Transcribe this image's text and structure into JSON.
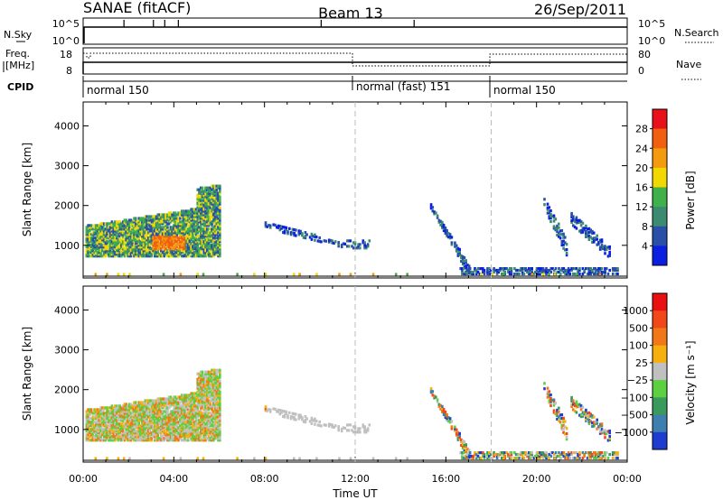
{
  "header": {
    "station": "SANAE (fitACF)",
    "beam": "Beam 13",
    "date": "26/Sep/2011"
  },
  "noise_panel": {
    "left_label": "N.Sky",
    "right_label": "N.Search",
    "left_ticks": [
      "10^5",
      "10^0"
    ],
    "right_ticks": [
      "10^5",
      "10^0"
    ]
  },
  "freq_panel": {
    "left_label_1": "Freq.",
    "left_label_2": "[MHz]",
    "right_label": "Nave",
    "left_ticks": [
      "18",
      "8"
    ],
    "right_ticks": [
      "80",
      "0"
    ]
  },
  "cpid": {
    "label": "CPID",
    "segments": [
      {
        "label": "normal 150",
        "start_hour": 0
      },
      {
        "label": "normal (fast) 151",
        "start_hour": 12
      },
      {
        "label": "normal 150",
        "start_hour": 18
      }
    ]
  },
  "chart_data": [
    {
      "type": "heatmap",
      "title": "",
      "xlabel": "",
      "ylabel": "Slant Range [km]",
      "xlim": [
        0,
        24
      ],
      "ylim": [
        180,
        4600
      ],
      "yticks": [
        "1000",
        "2000",
        "3000",
        "4000"
      ],
      "colorbar": {
        "label": "Power [dB]",
        "ticks": [
          "4",
          "8",
          "12",
          "16",
          "20",
          "24",
          "28"
        ],
        "colors": [
          "#0a1fe0",
          "#2a4fa8",
          "#3c8a70",
          "#3fb04a",
          "#f0d800",
          "#f39a10",
          "#f06010",
          "#e8101a"
        ]
      }
    },
    {
      "type": "heatmap",
      "title": "",
      "xlabel": "Time UT",
      "ylabel": "Slant Range [km]",
      "xlim": [
        0,
        24
      ],
      "ylim": [
        180,
        4600
      ],
      "yticks": [
        "1000",
        "2000",
        "3000",
        "4000"
      ],
      "xticks": [
        "00:00",
        "04:00",
        "08:00",
        "12:00",
        "16:00",
        "20:00",
        "00:00"
      ],
      "colorbar": {
        "label": "Velocity  [m s⁻¹]",
        "ticks": [
          "1000",
          "500",
          "100",
          "25",
          "−25",
          "−100",
          "−500",
          "−1000"
        ],
        "colors": [
          "#1e3cd0",
          "#3f7fb0",
          "#3a9a5c",
          "#5cd040",
          "#c0c0c0",
          "#f5b010",
          "#f07818",
          "#f04818",
          "#e81010"
        ]
      }
    }
  ]
}
